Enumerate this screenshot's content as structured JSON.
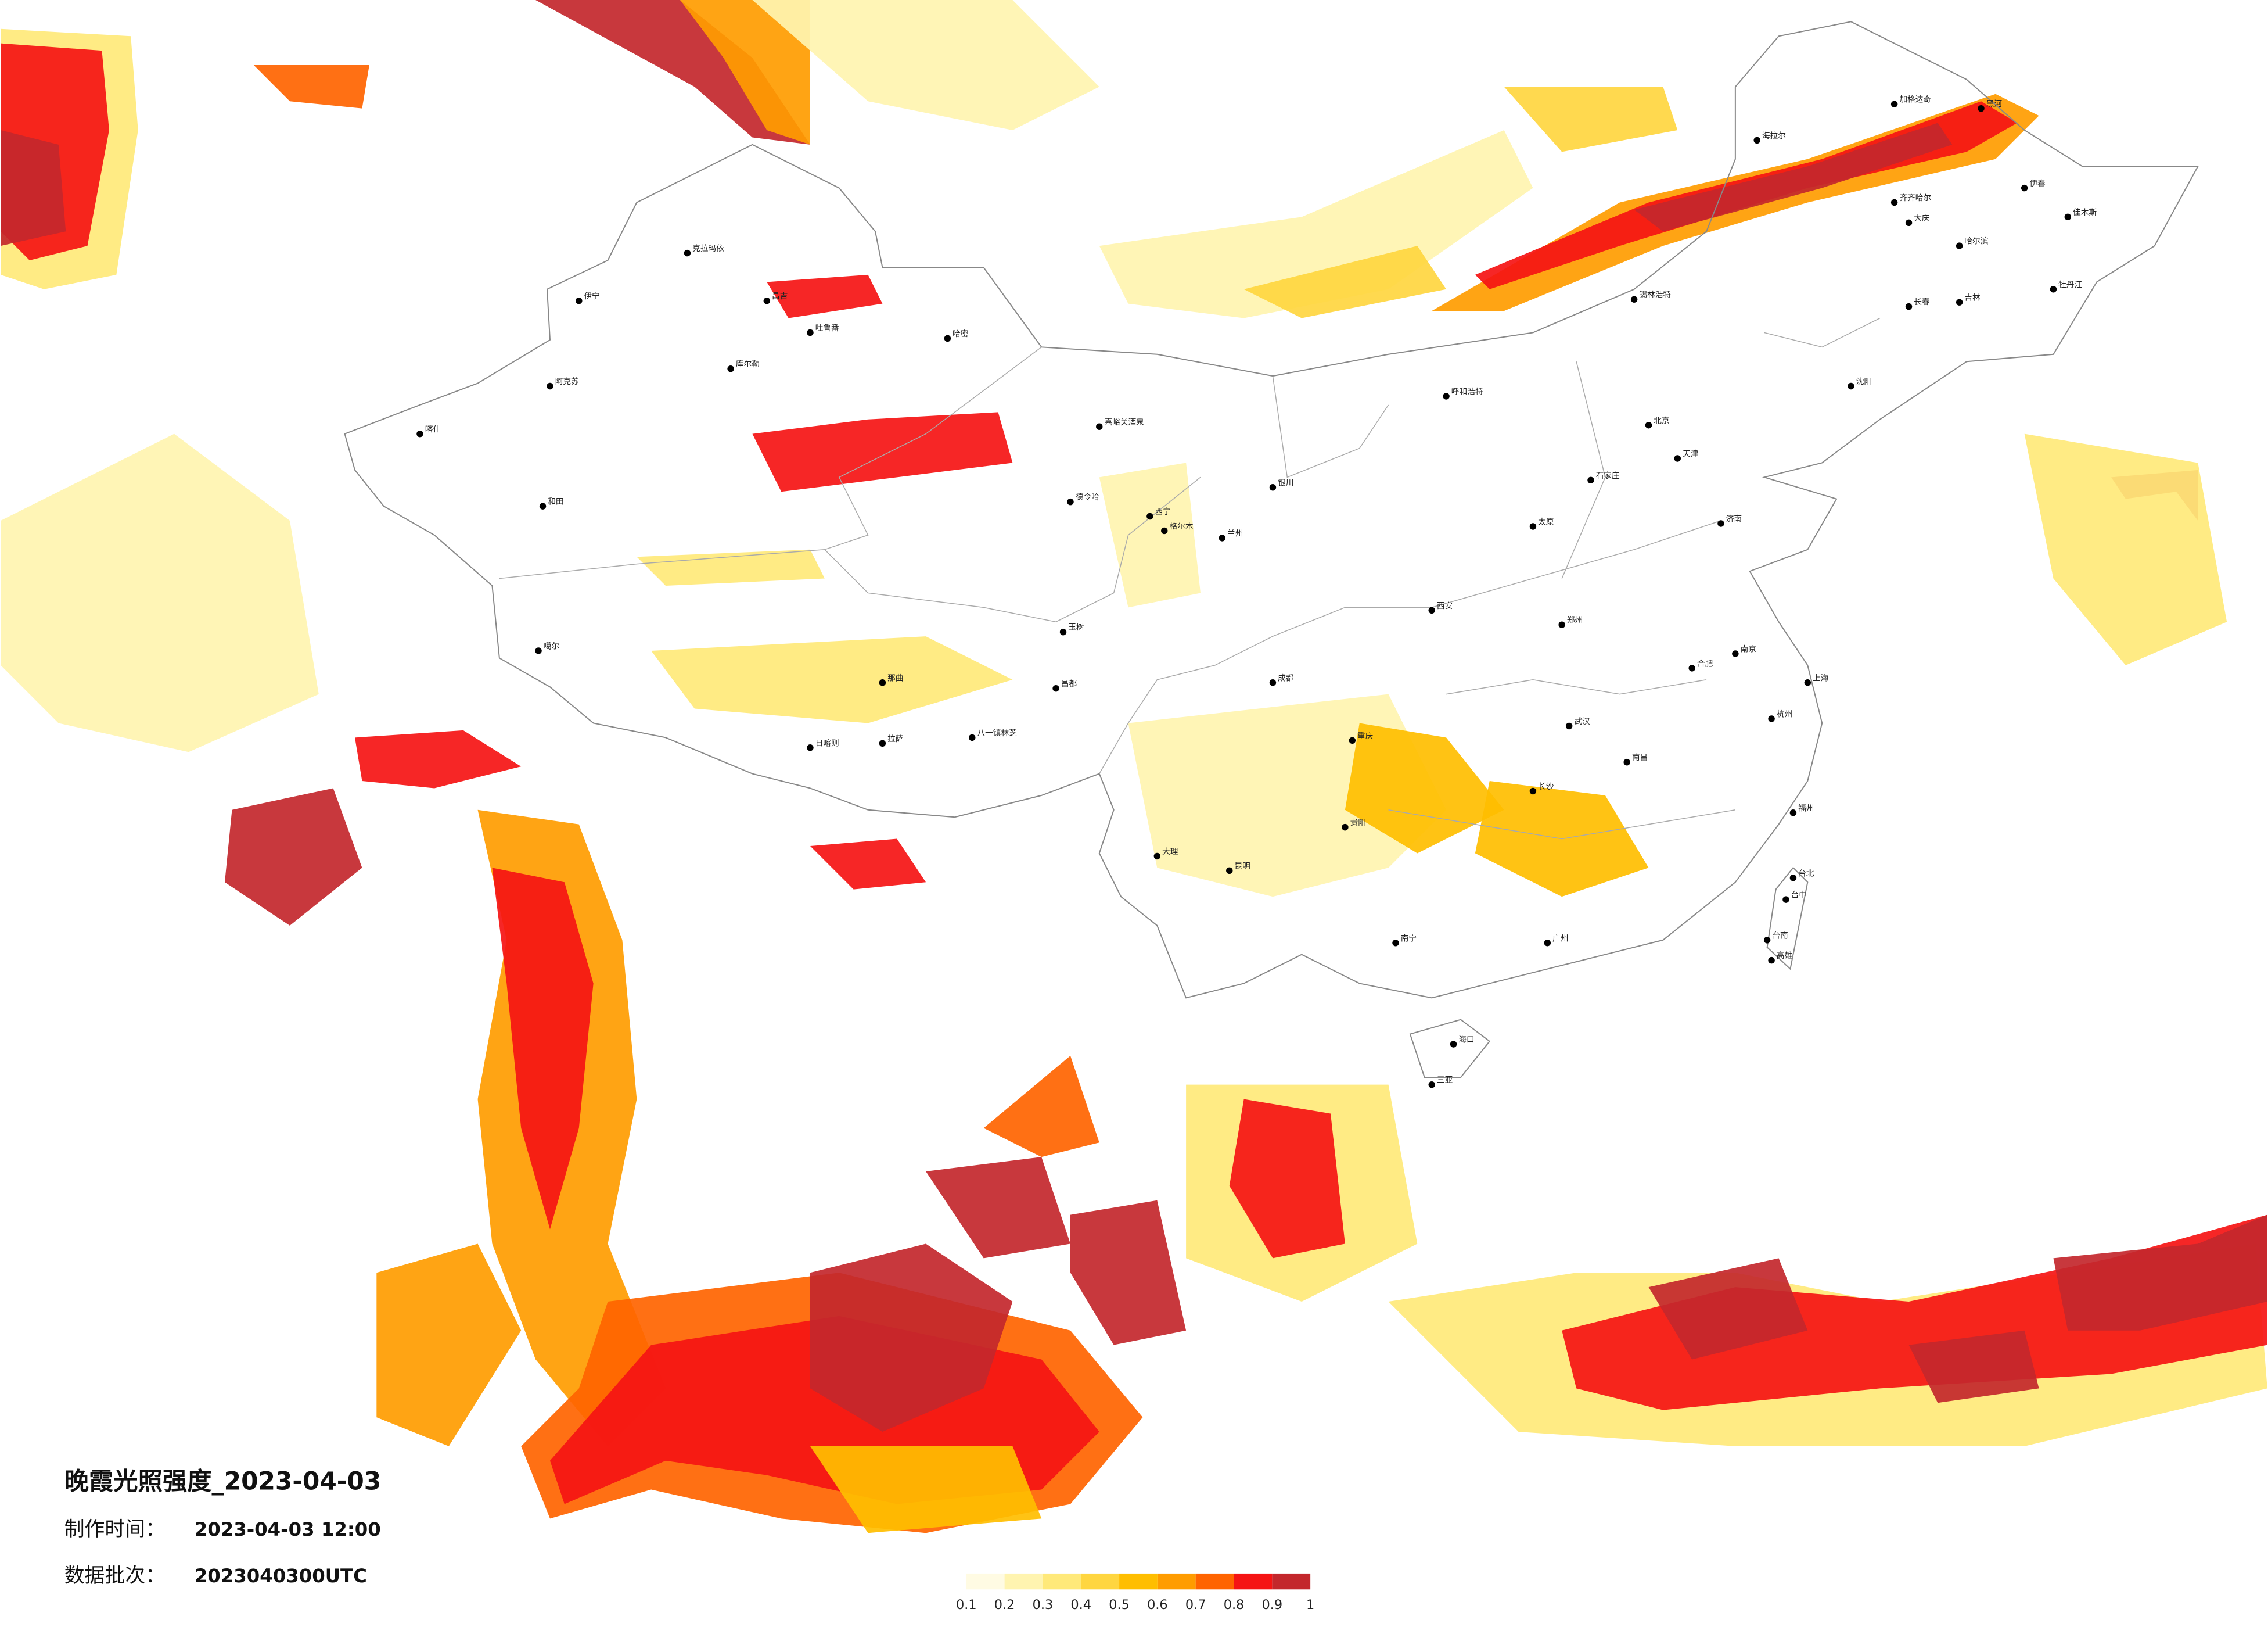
{
  "title": "晚霞光照强度_2023-04-03",
  "info": [
    {
      "label": "制作时间：",
      "value": "2023-04-03 12:00"
    },
    {
      "label": "数据批次：",
      "value": "2023040300UTC"
    }
  ],
  "legend": {
    "ticks": [
      0.1,
      0.2,
      0.3,
      0.4,
      0.5,
      0.6,
      0.7,
      0.8,
      0.9,
      1
    ],
    "colors": [
      "#fffbe3",
      "#fff4b0",
      "#ffe97a",
      "#ffd640",
      "#ffbe00",
      "#ff9c00",
      "#ff6400",
      "#f51414",
      "#c3272c"
    ]
  },
  "cities": [
    "克拉玛依",
    "伊宁",
    "阿克苏",
    "喀什",
    "和田",
    "昌吉",
    "吐鲁番",
    "哈密",
    "库尔勒",
    "嘉峪关酒泉",
    "德令哈",
    "格尔木",
    "噶尔",
    "那曲",
    "拉萨",
    "日喀则",
    "八一镇林芝",
    "昌都",
    "玉树",
    "海拉尔",
    "加格达奇",
    "黑河",
    "齐齐哈尔",
    "大庆",
    "哈尔滨",
    "伊春",
    "佳木斯",
    "牡丹江",
    "长春",
    "吉林",
    "沈阳",
    "锡林浩特",
    "呼和浩特",
    "北京",
    "天津",
    "石家庄",
    "太原",
    "郑州",
    "西安",
    "济南",
    "南京",
    "上海",
    "杭州",
    "合肥",
    "武汉",
    "长沙",
    "南昌",
    "福州",
    "广州",
    "南宁",
    "贵阳",
    "昆明",
    "成都",
    "重庆",
    "兰州",
    "西宁",
    "银川",
    "海口",
    "台北",
    "台中",
    "台南",
    "高雄",
    "三亚",
    "大理"
  ]
}
